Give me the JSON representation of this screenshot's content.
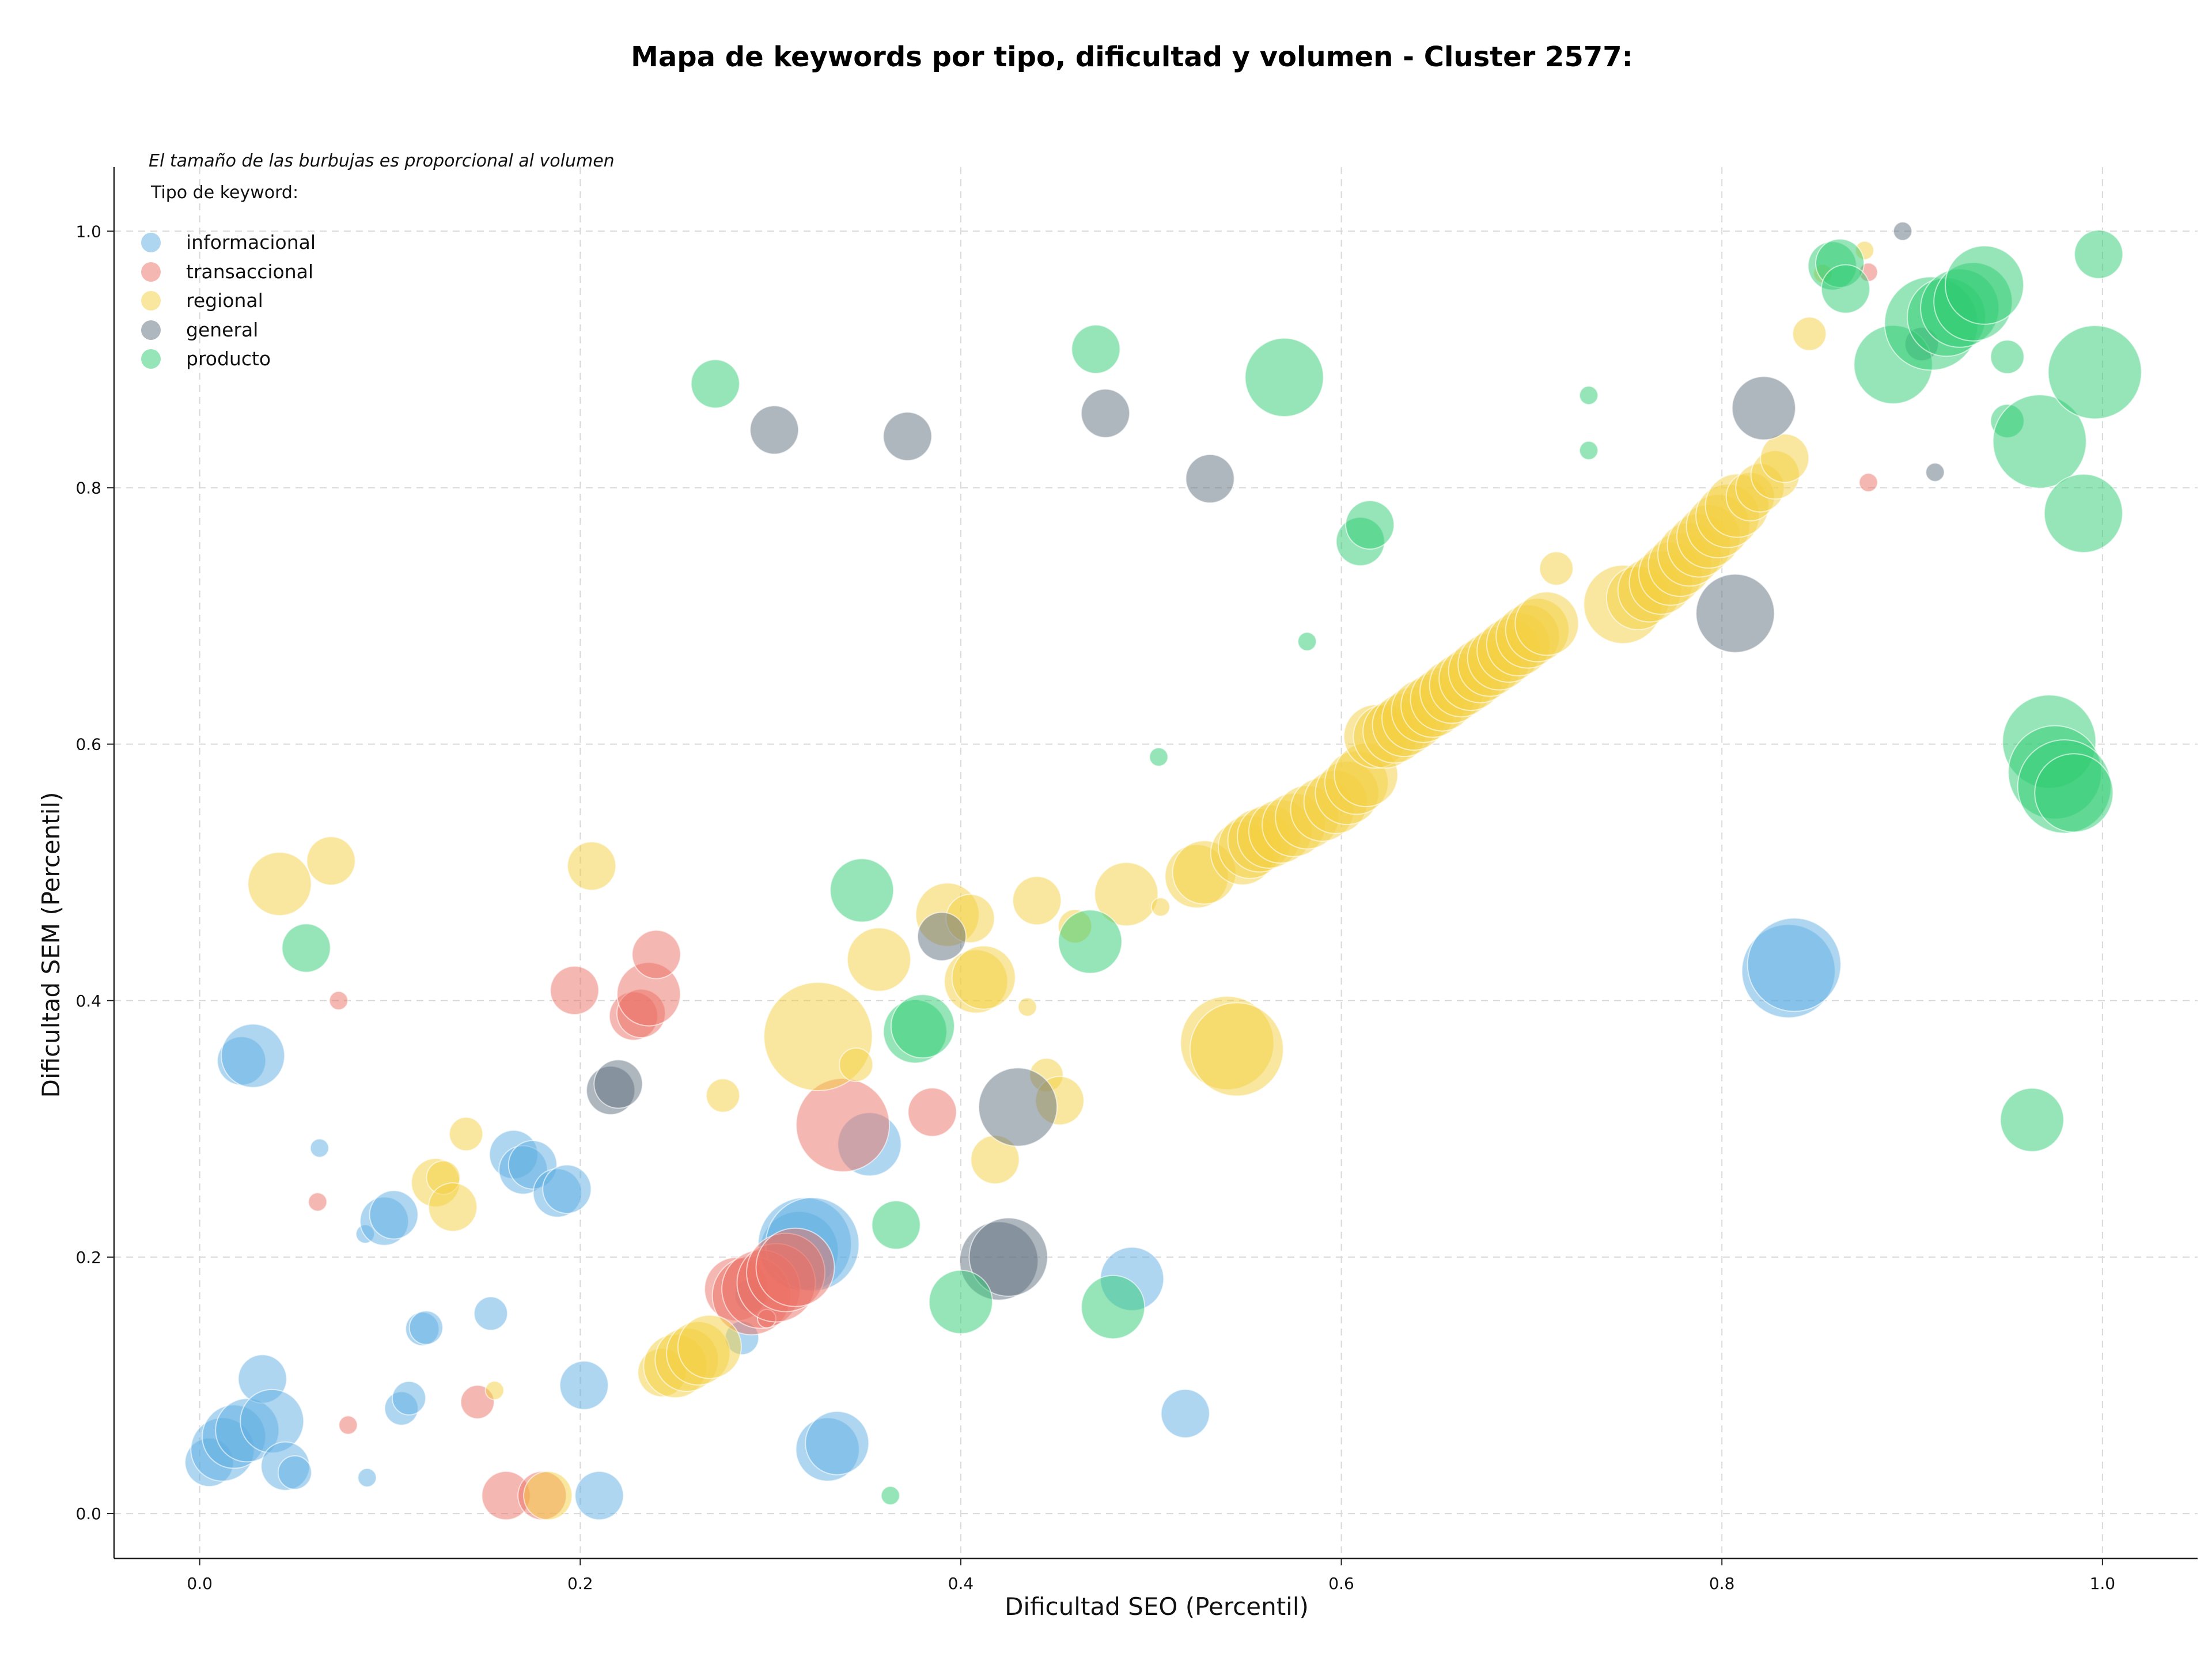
{
  "chart_data": {
    "type": "scatter",
    "title": "Mapa de keywords por tipo, dificultad y volumen - Cluster 2577:",
    "xlabel": "Dificultad SEO (Percentil)",
    "ylabel": "Dificultad SEM (Percentil)",
    "note": "El tamaño de las burbujas es proporcional al volumen",
    "legend_title": "Tipo de keyword:",
    "legend_position": "top-left",
    "grid": true,
    "xlim": [
      -0.045,
      1.05
    ],
    "ylim": [
      -0.035,
      1.05
    ],
    "xticks": [
      "0.0",
      "0.2",
      "0.4",
      "0.6",
      "0.8",
      "1.0"
    ],
    "yticks": [
      "0.0",
      "0.2",
      "0.4",
      "0.6",
      "0.8",
      "1.0"
    ],
    "series": [
      {
        "name": "informacional",
        "color": "#5DADE2",
        "points": [
          [
            0.005,
            0.04,
            3
          ],
          [
            0.012,
            0.05,
            4
          ],
          [
            0.018,
            0.06,
            4
          ],
          [
            0.025,
            0.065,
            4
          ],
          [
            0.033,
            0.105,
            3
          ],
          [
            0.038,
            0.072,
            4
          ],
          [
            0.045,
            0.037,
            3
          ],
          [
            0.05,
            0.032,
            2
          ],
          [
            0.022,
            0.353,
            3
          ],
          [
            0.028,
            0.357,
            4
          ],
          [
            0.063,
            0.285,
            1
          ],
          [
            0.087,
            0.218,
            1
          ],
          [
            0.088,
            0.028,
            1
          ],
          [
            0.097,
            0.228,
            3
          ],
          [
            0.102,
            0.233,
            3
          ],
          [
            0.106,
            0.082,
            2
          ],
          [
            0.11,
            0.09,
            2
          ],
          [
            0.117,
            0.144,
            2
          ],
          [
            0.119,
            0.145,
            2
          ],
          [
            0.153,
            0.156,
            2
          ],
          [
            0.165,
            0.28,
            3
          ],
          [
            0.17,
            0.268,
            3
          ],
          [
            0.175,
            0.272,
            3
          ],
          [
            0.188,
            0.25,
            3
          ],
          [
            0.193,
            0.253,
            3
          ],
          [
            0.202,
            0.1,
            3
          ],
          [
            0.21,
            0.014,
            3
          ],
          [
            0.285,
            0.137,
            2
          ],
          [
            0.29,
            0.17,
            2
          ],
          [
            0.315,
            0.205,
            5
          ],
          [
            0.318,
            0.21,
            6
          ],
          [
            0.322,
            0.21,
            6
          ],
          [
            0.33,
            0.05,
            4
          ],
          [
            0.335,
            0.055,
            4
          ],
          [
            0.352,
            0.288,
            4
          ],
          [
            0.49,
            0.183,
            4
          ],
          [
            0.518,
            0.078,
            3
          ],
          [
            0.835,
            0.423,
            6
          ],
          [
            0.838,
            0.428,
            6
          ]
        ]
      },
      {
        "name": "transaccional",
        "color": "#EC7063",
        "points": [
          [
            0.062,
            0.243,
            1
          ],
          [
            0.073,
            0.4,
            1
          ],
          [
            0.078,
            0.069,
            1
          ],
          [
            0.146,
            0.087,
            2
          ],
          [
            0.161,
            0.014,
            3
          ],
          [
            0.18,
            0.014,
            3
          ],
          [
            0.197,
            0.408,
            3
          ],
          [
            0.228,
            0.388,
            3
          ],
          [
            0.232,
            0.39,
            3
          ],
          [
            0.236,
            0.405,
            4
          ],
          [
            0.24,
            0.436,
            3
          ],
          [
            0.282,
            0.175,
            4
          ],
          [
            0.29,
            0.17,
            5
          ],
          [
            0.295,
            0.175,
            5
          ],
          [
            0.298,
            0.152,
            1
          ],
          [
            0.303,
            0.18,
            5
          ],
          [
            0.308,
            0.188,
            5
          ],
          [
            0.313,
            0.192,
            5
          ],
          [
            0.338,
            0.303,
            6
          ],
          [
            0.385,
            0.313,
            3
          ],
          [
            0.877,
            0.968,
            1
          ],
          [
            0.877,
            0.804,
            1
          ]
        ]
      },
      {
        "name": "regional",
        "color": "#F4D03F",
        "points": [
          [
            0.042,
            0.491,
            4
          ],
          [
            0.069,
            0.509,
            3
          ],
          [
            0.124,
            0.258,
            3
          ],
          [
            0.128,
            0.262,
            2
          ],
          [
            0.133,
            0.239,
            3
          ],
          [
            0.14,
            0.296,
            2
          ],
          [
            0.155,
            0.096,
            1
          ],
          [
            0.183,
            0.014,
            3
          ],
          [
            0.206,
            0.505,
            3
          ],
          [
            0.243,
            0.11,
            3
          ],
          [
            0.25,
            0.115,
            4
          ],
          [
            0.256,
            0.12,
            4
          ],
          [
            0.262,
            0.125,
            4
          ],
          [
            0.268,
            0.13,
            4
          ],
          [
            0.275,
            0.326,
            2
          ],
          [
            0.325,
            0.372,
            7
          ],
          [
            0.345,
            0.35,
            2
          ],
          [
            0.357,
            0.432,
            4
          ],
          [
            0.393,
            0.467,
            4
          ],
          [
            0.405,
            0.464,
            3
          ],
          [
            0.408,
            0.415,
            4
          ],
          [
            0.412,
            0.418,
            4
          ],
          [
            0.418,
            0.276,
            3
          ],
          [
            0.435,
            0.395,
            1
          ],
          [
            0.44,
            0.478,
            3
          ],
          [
            0.445,
            0.342,
            2
          ],
          [
            0.452,
            0.322,
            3
          ],
          [
            0.46,
            0.458,
            2
          ],
          [
            0.487,
            0.483,
            4
          ],
          [
            0.505,
            0.473,
            1
          ],
          [
            0.524,
            0.497,
            4
          ],
          [
            0.528,
            0.5,
            4
          ],
          [
            0.54,
            0.367,
            6
          ],
          [
            0.545,
            0.362,
            6
          ],
          [
            0.548,
            0.515,
            4
          ],
          [
            0.552,
            0.52,
            4
          ],
          [
            0.557,
            0.525,
            4
          ],
          [
            0.562,
            0.528,
            4
          ],
          [
            0.568,
            0.532,
            4
          ],
          [
            0.575,
            0.537,
            4
          ],
          [
            0.582,
            0.543,
            4
          ],
          [
            0.59,
            0.549,
            4
          ],
          [
            0.597,
            0.555,
            4
          ],
          [
            0.603,
            0.562,
            4
          ],
          [
            0.608,
            0.57,
            4
          ],
          [
            0.613,
            0.576,
            4
          ],
          [
            0.618,
            0.606,
            4
          ],
          [
            0.623,
            0.606,
            4
          ],
          [
            0.628,
            0.61,
            4
          ],
          [
            0.633,
            0.615,
            4
          ],
          [
            0.638,
            0.62,
            4
          ],
          [
            0.643,
            0.626,
            4
          ],
          [
            0.648,
            0.63,
            4
          ],
          [
            0.653,
            0.635,
            4
          ],
          [
            0.658,
            0.641,
            4
          ],
          [
            0.663,
            0.646,
            4
          ],
          [
            0.668,
            0.651,
            4
          ],
          [
            0.673,
            0.657,
            4
          ],
          [
            0.678,
            0.662,
            4
          ],
          [
            0.683,
            0.667,
            4
          ],
          [
            0.688,
            0.673,
            4
          ],
          [
            0.693,
            0.678,
            4
          ],
          [
            0.698,
            0.684,
            4
          ],
          [
            0.703,
            0.689,
            4
          ],
          [
            0.708,
            0.694,
            4
          ],
          [
            0.713,
            0.737,
            2
          ],
          [
            0.748,
            0.709,
            5
          ],
          [
            0.756,
            0.714,
            4
          ],
          [
            0.762,
            0.72,
            4
          ],
          [
            0.768,
            0.726,
            4
          ],
          [
            0.773,
            0.733,
            4
          ],
          [
            0.778,
            0.74,
            4
          ],
          [
            0.783,
            0.748,
            4
          ],
          [
            0.788,
            0.755,
            4
          ],
          [
            0.793,
            0.762,
            4
          ],
          [
            0.798,
            0.77,
            4
          ],
          [
            0.803,
            0.778,
            4
          ],
          [
            0.808,
            0.786,
            4
          ],
          [
            0.815,
            0.793,
            3
          ],
          [
            0.82,
            0.8,
            3
          ],
          [
            0.828,
            0.81,
            3
          ],
          [
            0.833,
            0.823,
            3
          ],
          [
            0.846,
            0.92,
            2
          ],
          [
            0.853,
            0.967,
            1
          ],
          [
            0.875,
            0.985,
            1
          ]
        ]
      },
      {
        "name": "general",
        "color": "#5D6D7E",
        "points": [
          [
            0.216,
            0.33,
            3
          ],
          [
            0.22,
            0.335,
            3
          ],
          [
            0.302,
            0.845,
            3
          ],
          [
            0.372,
            0.84,
            3
          ],
          [
            0.39,
            0.45,
            3
          ],
          [
            0.42,
            0.197,
            5
          ],
          [
            0.425,
            0.2,
            5
          ],
          [
            0.43,
            0.317,
            5
          ],
          [
            0.476,
            0.858,
            3
          ],
          [
            0.531,
            0.807,
            3
          ],
          [
            0.807,
            0.702,
            5
          ],
          [
            0.822,
            0.862,
            4
          ],
          [
            0.895,
            1.0,
            1
          ],
          [
            0.905,
            0.912,
            2
          ],
          [
            0.912,
            0.812,
            1
          ]
        ]
      },
      {
        "name": "producto",
        "color": "#2ECC71",
        "points": [
          [
            0.056,
            0.441,
            3
          ],
          [
            0.271,
            0.881,
            3
          ],
          [
            0.348,
            0.486,
            4
          ],
          [
            0.366,
            0.225,
            3
          ],
          [
            0.376,
            0.376,
            4
          ],
          [
            0.38,
            0.38,
            4
          ],
          [
            0.4,
            0.165,
            4
          ],
          [
            0.471,
            0.908,
            3
          ],
          [
            0.504,
            0.59,
            1
          ],
          [
            0.48,
            0.161,
            4
          ],
          [
            0.468,
            0.446,
            4
          ],
          [
            0.363,
            0.014,
            1
          ],
          [
            0.57,
            0.886,
            5
          ],
          [
            0.582,
            0.68,
            1
          ],
          [
            0.61,
            0.758,
            3
          ],
          [
            0.615,
            0.771,
            3
          ],
          [
            0.73,
            0.872,
            1
          ],
          [
            0.73,
            0.829,
            1
          ],
          [
            0.858,
            0.973,
            3
          ],
          [
            0.862,
            0.975,
            3
          ],
          [
            0.865,
            0.955,
            3
          ],
          [
            0.89,
            0.896,
            5
          ],
          [
            0.91,
            0.928,
            6
          ],
          [
            0.918,
            0.933,
            5
          ],
          [
            0.925,
            0.94,
            5
          ],
          [
            0.932,
            0.945,
            5
          ],
          [
            0.938,
            0.958,
            5
          ],
          [
            0.95,
            0.902,
            2
          ],
          [
            0.95,
            0.852,
            2
          ],
          [
            0.963,
            0.307,
            4
          ],
          [
            0.967,
            0.836,
            6
          ],
          [
            0.972,
            0.602,
            6
          ],
          [
            0.975,
            0.578,
            6
          ],
          [
            0.98,
            0.567,
            6
          ],
          [
            0.985,
            0.562,
            5
          ],
          [
            0.99,
            0.78,
            5
          ],
          [
            0.996,
            0.89,
            6
          ],
          [
            0.998,
            0.982,
            3
          ]
        ]
      }
    ]
  }
}
